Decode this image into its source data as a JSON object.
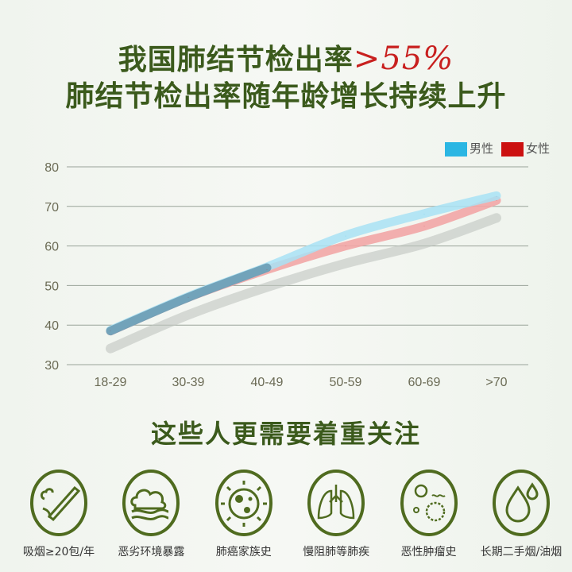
{
  "title_line1": "我国肺结节检出率",
  "title_accent": ">55%",
  "title_line2": "肺结节检出率随年龄增长持续上升",
  "subtitle": "这些人更需要着重关注",
  "colors": {
    "male": "#2bb6e3",
    "female": "#cc1111",
    "title": "#3b5a1c"
  },
  "chart_data": {
    "type": "line",
    "categories": [
      "18-29",
      "30-39",
      "40-49",
      "50-59",
      "60-69",
      ">70"
    ],
    "series": [
      {
        "name": "男性",
        "color": "#2bb6e3",
        "values": [
          38.5,
          47,
          54.5,
          62.5,
          68,
          72.5
        ]
      },
      {
        "name": "女性",
        "color": "#cc1111",
        "values": [
          38.5,
          47,
          54,
          60,
          65,
          71.5
        ]
      }
    ],
    "yticks": [
      30,
      40,
      50,
      60,
      70,
      80
    ],
    "ylim": [
      30,
      80
    ],
    "grid": true,
    "legend": "top-right"
  },
  "risk_groups": [
    {
      "icon": "smoking-icon",
      "label": "吸烟≥20包/年"
    },
    {
      "icon": "polluted-cloud-icon",
      "label": "恶劣环境暴露"
    },
    {
      "icon": "cancer-cell-icon",
      "label": "肺癌家族史"
    },
    {
      "icon": "lungs-icon",
      "label": "慢阻肺等肺疾"
    },
    {
      "icon": "tumor-cells-icon",
      "label": "恶性肿瘤史"
    },
    {
      "icon": "oil-drops-icon",
      "label": "长期二手烟/油烟"
    }
  ]
}
